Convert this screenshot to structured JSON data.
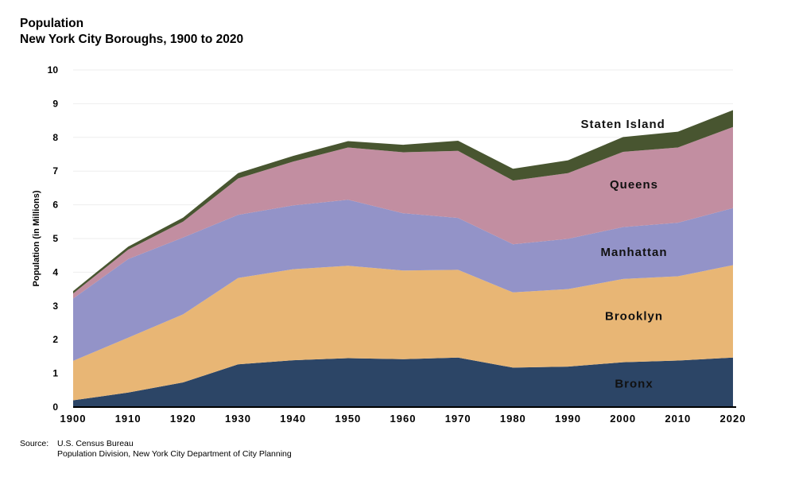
{
  "header": {
    "title_line1": "Population",
    "title_line2": "New York City Boroughs, 1900 to 2020"
  },
  "source": {
    "label": "Source:",
    "line1": "U.S. Census Bureau",
    "line2": "Population Division, New York City Department of City Planning"
  },
  "chart_data": {
    "type": "area",
    "stacked": true,
    "ylabel": "Population (in Millions)",
    "xlabel": "",
    "ylim": [
      0,
      10
    ],
    "yticks": [
      0,
      1,
      2,
      3,
      4,
      5,
      6,
      7,
      8,
      9,
      10
    ],
    "grid": true,
    "x": [
      1900,
      1910,
      1920,
      1930,
      1940,
      1950,
      1960,
      1970,
      1980,
      1990,
      2000,
      2010,
      2020
    ],
    "series": [
      {
        "name": "Bronx",
        "color": "#2c4566",
        "values": [
          0.2,
          0.43,
          0.73,
          1.27,
          1.39,
          1.45,
          1.42,
          1.47,
          1.17,
          1.2,
          1.33,
          1.38,
          1.47
        ]
      },
      {
        "name": "Brooklyn",
        "color": "#e8b675",
        "values": [
          1.17,
          1.63,
          2.02,
          2.56,
          2.7,
          2.74,
          2.63,
          2.6,
          2.23,
          2.3,
          2.47,
          2.5,
          2.74
        ]
      },
      {
        "name": "Manhattan",
        "color": "#9393c8",
        "values": [
          1.85,
          2.33,
          2.28,
          1.87,
          1.89,
          1.96,
          1.7,
          1.54,
          1.43,
          1.49,
          1.54,
          1.59,
          1.69
        ]
      },
      {
        "name": "Queens",
        "color": "#c28ea1",
        "values": [
          0.15,
          0.28,
          0.47,
          1.08,
          1.3,
          1.55,
          1.81,
          1.99,
          1.89,
          1.95,
          2.23,
          2.23,
          2.41
        ]
      },
      {
        "name": "Staten Island",
        "color": "#485530",
        "values": [
          0.07,
          0.09,
          0.12,
          0.16,
          0.17,
          0.19,
          0.22,
          0.3,
          0.35,
          0.38,
          0.44,
          0.47,
          0.5
        ]
      }
    ],
    "labels": [
      {
        "text": "Staten Island",
        "year": 2000,
        "value": 8.4
      },
      {
        "text": "Queens",
        "year": 2002,
        "value": 6.6
      },
      {
        "text": "Manhattan",
        "year": 2002,
        "value": 4.6
      },
      {
        "text": "Brooklyn",
        "year": 2002,
        "value": 2.7
      },
      {
        "text": "Bronx",
        "year": 2002,
        "value": 0.7
      }
    ]
  }
}
